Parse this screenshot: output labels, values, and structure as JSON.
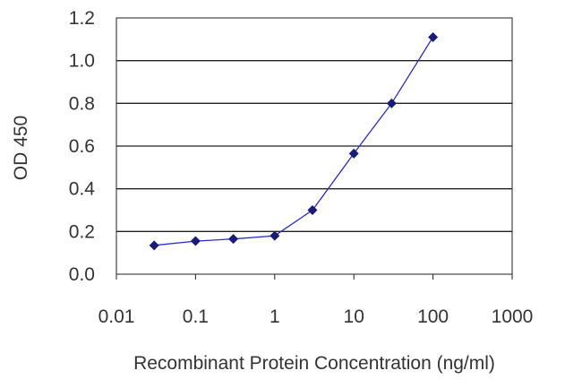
{
  "chart_data": {
    "type": "line",
    "title": "",
    "xlabel": "Recombinant Protein Concentration (ng/ml)",
    "ylabel": "OD 450",
    "x_scale": "log",
    "xlim": [
      0.01,
      1000
    ],
    "ylim": [
      0,
      1.2
    ],
    "x_ticks": [
      "0.01",
      "0.1",
      "1",
      "10",
      "100",
      "1000"
    ],
    "y_ticks": [
      "0.0",
      "0.2",
      "0.4",
      "0.6",
      "0.8",
      "1.0",
      "1.2"
    ],
    "grid": "horizontal",
    "series": [
      {
        "x": [
          0.03,
          0.1,
          0.3,
          1,
          3,
          10,
          30,
          100
        ],
        "y": [
          0.135,
          0.155,
          0.165,
          0.18,
          0.3,
          0.565,
          0.8,
          1.11
        ]
      }
    ],
    "colors": {
      "line": "#2b2bd6",
      "marker": "#1a1a7a",
      "grid": "#222222"
    }
  }
}
